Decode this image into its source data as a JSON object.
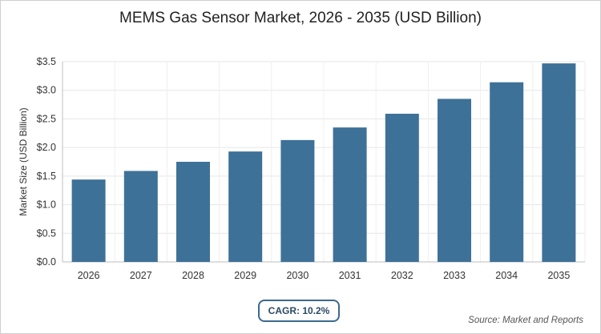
{
  "chart_data": {
    "type": "bar",
    "title": "MEMS Gas Sensor Market, 2026 - 2035 (USD Billion)",
    "xlabel": "",
    "ylabel": "Market Size (USD Billion)",
    "categories": [
      "2026",
      "2027",
      "2028",
      "2029",
      "2030",
      "2031",
      "2032",
      "2033",
      "2034",
      "2035"
    ],
    "values": [
      1.44,
      1.59,
      1.75,
      1.93,
      2.13,
      2.35,
      2.59,
      2.85,
      3.14,
      3.47
    ],
    "ylim": [
      0,
      3.5
    ],
    "yticks": [
      "$0.0",
      "$0.5",
      "$1.0",
      "$1.5",
      "$2.0",
      "$2.5",
      "$3.0",
      "$3.5"
    ],
    "ytick_values": [
      0,
      0.5,
      1.0,
      1.5,
      2.0,
      2.5,
      3.0,
      3.5
    ],
    "grid": true,
    "bar_color": "#3e7198"
  },
  "cagr_label": "CAGR: 10.2%",
  "source_label": "Source: Market and Reports"
}
